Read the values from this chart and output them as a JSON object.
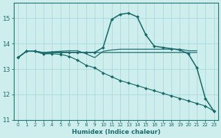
{
  "xlabel": "Humidex (Indice chaleur)",
  "bg_color": "#ceeeed",
  "grid_color": "#a8d8d8",
  "line_color": "#1a6b6b",
  "xlim": [
    -0.5,
    23.5
  ],
  "ylim": [
    11.0,
    15.6
  ],
  "yticks": [
    11,
    12,
    13,
    14,
    15
  ],
  "xticks": [
    0,
    1,
    2,
    3,
    4,
    5,
    6,
    7,
    8,
    9,
    10,
    11,
    12,
    13,
    14,
    15,
    16,
    17,
    18,
    19,
    20,
    21,
    22,
    23
  ],
  "lines": [
    {
      "x": [
        0,
        1,
        2,
        3,
        4,
        5,
        6,
        7,
        8,
        9,
        10,
        11,
        12,
        13,
        14,
        15,
        16,
        17,
        18,
        19,
        20,
        21,
        22,
        23
      ],
      "y": [
        13.45,
        13.7,
        13.7,
        13.6,
        13.65,
        13.65,
        13.65,
        13.65,
        13.65,
        13.65,
        13.85,
        14.95,
        15.15,
        15.2,
        15.05,
        14.35,
        13.9,
        13.85,
        13.8,
        13.75,
        13.6,
        13.05,
        11.85,
        11.35
      ],
      "marker": "D",
      "markersize": 2.0,
      "linewidth": 1.2,
      "zorder": 5
    },
    {
      "x": [
        0,
        1,
        2,
        3,
        4,
        5,
        6,
        7,
        8,
        9,
        10,
        11,
        12,
        13,
        14,
        15,
        16,
        17,
        18,
        19,
        20,
        21
      ],
      "y": [
        13.45,
        13.7,
        13.7,
        13.65,
        13.65,
        13.65,
        13.65,
        13.65,
        13.65,
        13.65,
        13.65,
        13.65,
        13.65,
        13.65,
        13.65,
        13.65,
        13.65,
        13.65,
        13.65,
        13.65,
        13.65,
        13.65
      ],
      "marker": null,
      "markersize": 0,
      "linewidth": 0.9,
      "zorder": 3
    },
    {
      "x": [
        0,
        1,
        2,
        3,
        4,
        5,
        6,
        7,
        8,
        9,
        10,
        11,
        12,
        13,
        14,
        15,
        16,
        17,
        18,
        19,
        20,
        21
      ],
      "y": [
        13.45,
        13.7,
        13.7,
        13.65,
        13.68,
        13.7,
        13.72,
        13.72,
        13.6,
        13.45,
        13.7,
        13.75,
        13.78,
        13.78,
        13.78,
        13.78,
        13.78,
        13.78,
        13.78,
        13.78,
        13.72,
        13.72
      ],
      "marker": null,
      "markersize": 0,
      "linewidth": 0.9,
      "zorder": 3
    },
    {
      "x": [
        0,
        1,
        2,
        3,
        4,
        5,
        6,
        7,
        8,
        9,
        10,
        11,
        12,
        13,
        14,
        15,
        16,
        17,
        18,
        19,
        20,
        21,
        22,
        23
      ],
      "y": [
        13.45,
        13.7,
        13.7,
        13.6,
        13.6,
        13.58,
        13.5,
        13.35,
        13.15,
        13.05,
        12.85,
        12.7,
        12.55,
        12.45,
        12.35,
        12.25,
        12.15,
        12.05,
        11.95,
        11.85,
        11.75,
        11.65,
        11.55,
        11.35
      ],
      "marker": "D",
      "markersize": 2.0,
      "linewidth": 0.9,
      "zorder": 4
    }
  ]
}
